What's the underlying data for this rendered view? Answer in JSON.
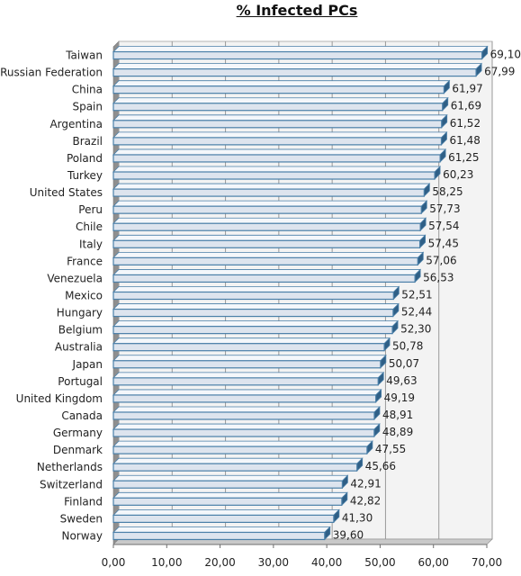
{
  "title": "% Infected PCs",
  "colors": {
    "bar_face": "#dde4ee",
    "bar_edge": "#4a7fa8",
    "bar_top": "#f4f7fb",
    "bar_shadow": "#2f5f86",
    "plot_bg": "#f3f3f3",
    "plot_floor": "#8f8f8f",
    "gridline": "#999999"
  },
  "chart_data": {
    "type": "bar",
    "orientation": "horizontal",
    "categories": [
      "Taiwan",
      "Russian Federation",
      "China",
      "Spain",
      "Argentina",
      "Brazil",
      "Poland",
      "Turkey",
      "United States",
      "Peru",
      "Chile",
      "Italy",
      "France",
      "Venezuela",
      "Mexico",
      "Hungary",
      "Belgium",
      "Australia",
      "Japan",
      "Portugal",
      "United Kingdom",
      "Canada",
      "Germany",
      "Denmark",
      "Netherlands",
      "Switzerland",
      "Finland",
      "Sweden",
      "Norway"
    ],
    "values": [
      69.1,
      67.99,
      61.97,
      61.69,
      61.52,
      61.48,
      61.25,
      60.23,
      58.25,
      57.73,
      57.54,
      57.45,
      57.06,
      56.53,
      52.51,
      52.44,
      52.3,
      50.78,
      50.07,
      49.63,
      49.19,
      48.91,
      48.89,
      47.55,
      45.66,
      42.91,
      42.82,
      41.3,
      39.6
    ],
    "value_labels": [
      "69,10",
      "67,99",
      "61,97",
      "61,69",
      "61,52",
      "61,48",
      "61,25",
      "60,23",
      "58,25",
      "57,73",
      "57,54",
      "57,45",
      "57,06",
      "56,53",
      "52,51",
      "52,44",
      "52,30",
      "50,78",
      "50,07",
      "49,63",
      "49,19",
      "48,91",
      "48,89",
      "47,55",
      "45,66",
      "42,91",
      "42,82",
      "41,30",
      "39,60"
    ],
    "xlim": [
      0,
      70
    ],
    "xticks": [
      0,
      10,
      20,
      30,
      40,
      50,
      60,
      70
    ],
    "xtick_labels": [
      "0,00",
      "10,00",
      "20,00",
      "30,00",
      "40,00",
      "50,00",
      "60,00",
      "70,00"
    ],
    "grid": true,
    "style": "3d",
    "legend": false
  }
}
